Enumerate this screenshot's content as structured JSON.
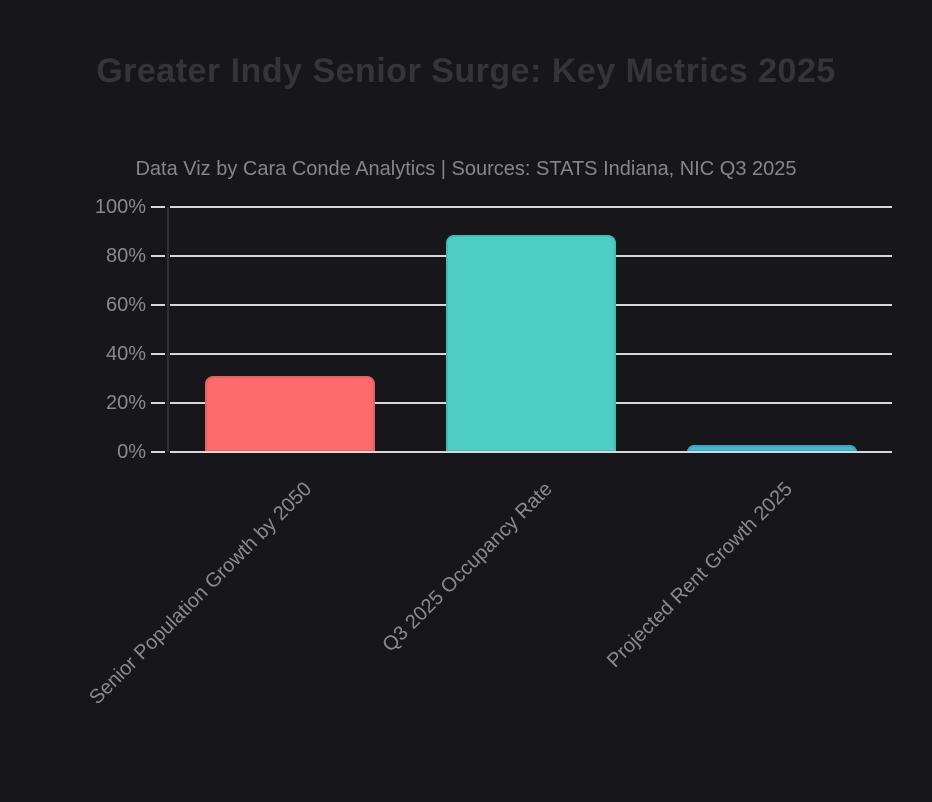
{
  "header": {
    "title": "Greater Indy Senior Surge: Key Metrics 2025",
    "subtitle": "Data Viz by Cara Conde Analytics | Sources: STATS Indiana, NIC Q3 2025"
  },
  "chart_data": {
    "type": "bar",
    "title": "Greater Indy Senior Surge: Key Metrics 2025",
    "subtitle": "Data Viz by Cara Conde Analytics | Sources: STATS Indiana, NIC Q3 2025",
    "categories": [
      "Senior Population Growth by 2050",
      "Q3 2025 Occupancy Rate",
      "Projected Rent Growth 2025"
    ],
    "values": [
      31,
      88.5,
      3
    ],
    "value_unit": "%",
    "y_ticks": [
      "100%",
      "80%",
      "60%",
      "40%",
      "20%",
      "0%"
    ],
    "ylim": [
      0,
      100
    ],
    "grid": true,
    "legend": false,
    "xlabel": "",
    "ylabel": ""
  },
  "colors": {
    "background": "#17171B",
    "title_text": "#343439",
    "subtitle_text": "#85858A",
    "axis_label_text": "#8A8A8E",
    "gridline": "#D7D7DA",
    "axis_line": "#303036",
    "bar_fills": [
      "#FF6B6B",
      "#4ECDC4",
      "#45B7D1"
    ],
    "bar_borders": [
      "#E85F5F",
      "#3FBDB4",
      "#3AA5BD"
    ]
  }
}
